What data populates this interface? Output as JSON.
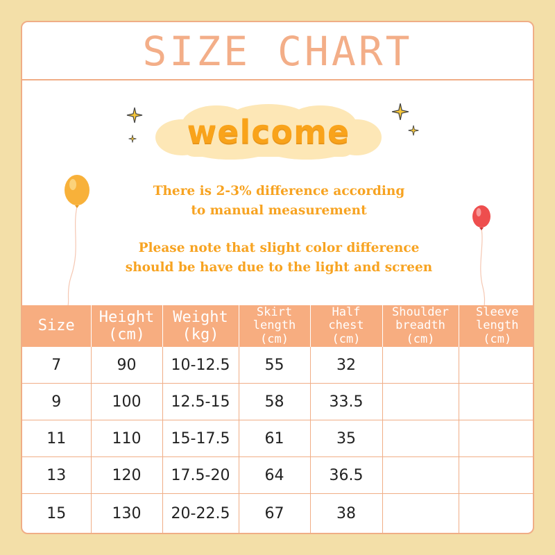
{
  "title": "SIZE CHART",
  "welcome": "welcome",
  "notes": [
    [
      "There is 2-3% difference according",
      "to manual measurement"
    ],
    [
      "Please note that slight color difference",
      "should be have due to the light and screen"
    ]
  ],
  "colors": {
    "background": "#f3dfa8",
    "accent": "#f7ad80",
    "title": "#f3ae88",
    "note_text": "#f7a321",
    "welcome_text": "#f9a31a",
    "cloud": "#fde7b6",
    "balloon_left": "#f8b13a",
    "balloon_right": "#ee4e4e"
  },
  "table": {
    "headers": [
      [
        "Size"
      ],
      [
        "Height",
        "(cm)"
      ],
      [
        "Weight",
        "(kg)"
      ],
      [
        "Skirt",
        "length",
        "(cm)"
      ],
      [
        "Half",
        "chest",
        "(cm)"
      ],
      [
        "Shoulder",
        "breadth",
        "(cm)"
      ],
      [
        "Sleeve",
        "length",
        "(cm)"
      ]
    ],
    "rows": [
      [
        "7",
        "90",
        "10-12.5",
        "55",
        "32",
        "",
        ""
      ],
      [
        "9",
        "100",
        "12.5-15",
        "58",
        "33.5",
        "",
        ""
      ],
      [
        "11",
        "110",
        "15-17.5",
        "61",
        "35",
        "",
        ""
      ],
      [
        "13",
        "120",
        "17.5-20",
        "64",
        "36.5",
        "",
        ""
      ],
      [
        "15",
        "130",
        "20-22.5",
        "67",
        "38",
        "",
        ""
      ]
    ]
  }
}
